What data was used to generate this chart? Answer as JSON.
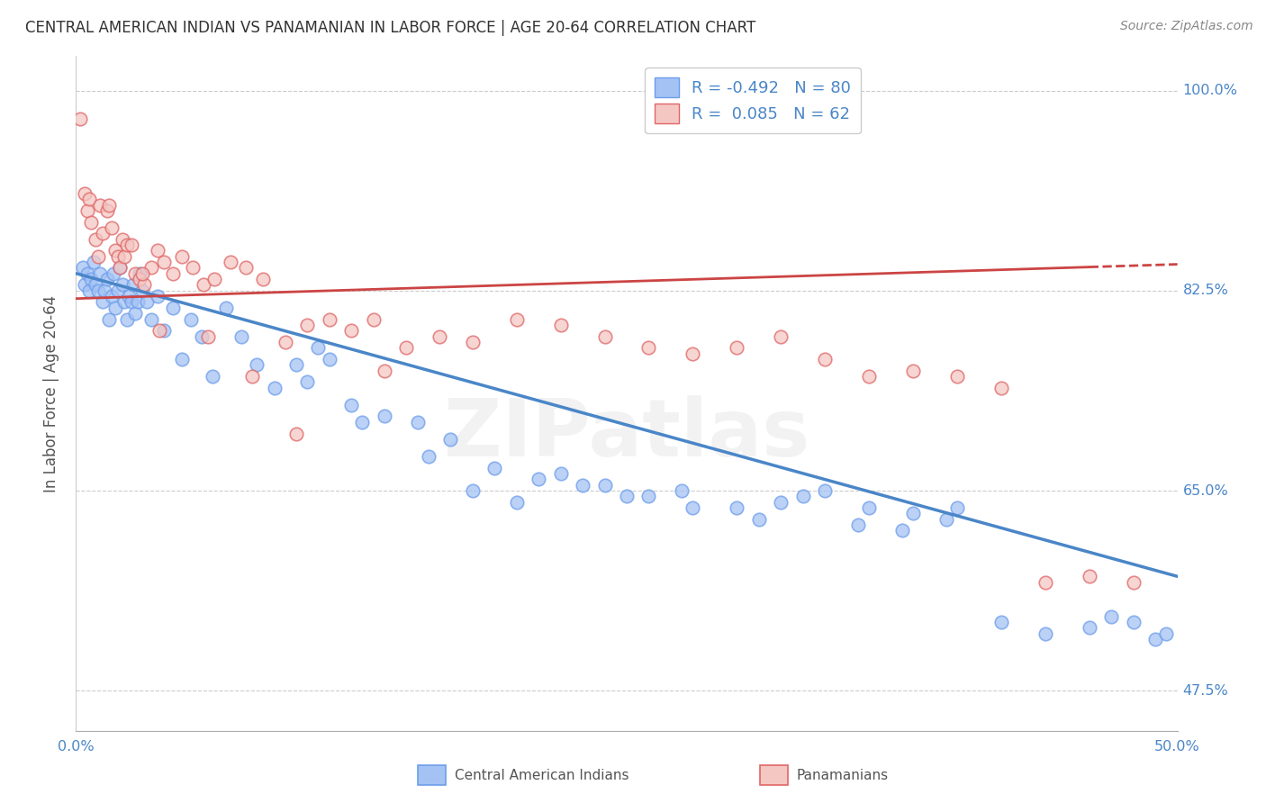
{
  "title": "CENTRAL AMERICAN INDIAN VS PANAMANIAN IN LABOR FORCE | AGE 20-64 CORRELATION CHART",
  "source_text": "Source: ZipAtlas.com",
  "ylabel": "In Labor Force | Age 20-64",
  "xlim": [
    0.0,
    50.0
  ],
  "ylim": [
    44.0,
    103.0
  ],
  "yticks": [
    47.5,
    65.0,
    82.5,
    100.0
  ],
  "ytick_labels": [
    "47.5%",
    "65.0%",
    "82.5%",
    "100.0%"
  ],
  "blue_R": -0.492,
  "blue_N": 80,
  "pink_R": 0.085,
  "pink_N": 62,
  "blue_face_color": "#a4c2f4",
  "pink_face_color": "#f4c7c3",
  "blue_edge_color": "#6d9eeb",
  "pink_edge_color": "#e06666",
  "blue_line_color": "#4a86c8",
  "pink_line_color": "#cc4444",
  "tick_color": "#4a86c8",
  "legend_label_blue": "Central American Indians",
  "legend_label_pink": "Panamanians",
  "watermark": "ZIPatlas",
  "blue_line_x0": 0.0,
  "blue_line_y0": 84.0,
  "blue_line_x1": 50.0,
  "blue_line_y1": 57.5,
  "pink_line_x0": 0.0,
  "pink_line_y0": 81.8,
  "pink_line_x1": 50.0,
  "pink_line_y1": 84.8,
  "pink_solid_end": 46.0,
  "blue_scatter_x": [
    0.3,
    0.4,
    0.5,
    0.6,
    0.7,
    0.8,
    0.9,
    1.0,
    1.1,
    1.2,
    1.3,
    1.4,
    1.5,
    1.6,
    1.7,
    1.8,
    1.9,
    2.0,
    2.1,
    2.2,
    2.3,
    2.4,
    2.5,
    2.6,
    2.7,
    2.8,
    2.9,
    3.0,
    3.2,
    3.4,
    3.7,
    4.0,
    4.4,
    4.8,
    5.2,
    5.7,
    6.2,
    6.8,
    7.5,
    8.2,
    9.0,
    10.0,
    11.0,
    12.5,
    14.0,
    15.5,
    17.0,
    19.0,
    21.0,
    23.0,
    25.0,
    27.5,
    30.0,
    32.0,
    34.0,
    36.0,
    38.0,
    40.0,
    42.0,
    44.0,
    46.0,
    47.0,
    48.0,
    49.0,
    49.5,
    10.5,
    11.5,
    13.0,
    16.0,
    18.0,
    20.0,
    22.0,
    24.0,
    26.0,
    28.0,
    31.0,
    33.0,
    35.5,
    37.5,
    39.5
  ],
  "blue_scatter_y": [
    84.5,
    83.0,
    84.0,
    82.5,
    83.5,
    85.0,
    83.0,
    82.5,
    84.0,
    81.5,
    82.5,
    83.5,
    80.0,
    82.0,
    84.0,
    81.0,
    82.5,
    84.5,
    83.0,
    81.5,
    80.0,
    82.0,
    81.5,
    83.0,
    80.5,
    81.5,
    84.0,
    82.5,
    81.5,
    80.0,
    82.0,
    79.0,
    81.0,
    76.5,
    80.0,
    78.5,
    75.0,
    81.0,
    78.5,
    76.0,
    74.0,
    76.0,
    77.5,
    72.5,
    71.5,
    71.0,
    69.5,
    67.0,
    66.0,
    65.5,
    64.5,
    65.0,
    63.5,
    64.0,
    65.0,
    63.5,
    63.0,
    63.5,
    53.5,
    52.5,
    53.0,
    54.0,
    53.5,
    52.0,
    52.5,
    74.5,
    76.5,
    71.0,
    68.0,
    65.0,
    64.0,
    66.5,
    65.5,
    64.5,
    63.5,
    62.5,
    64.5,
    62.0,
    61.5,
    62.5
  ],
  "pink_scatter_x": [
    0.2,
    0.4,
    0.5,
    0.6,
    0.7,
    0.9,
    1.0,
    1.1,
    1.2,
    1.4,
    1.5,
    1.6,
    1.8,
    1.9,
    2.0,
    2.1,
    2.2,
    2.3,
    2.5,
    2.7,
    2.9,
    3.1,
    3.4,
    3.7,
    4.0,
    4.4,
    4.8,
    5.3,
    5.8,
    6.3,
    7.0,
    7.7,
    8.5,
    9.5,
    10.5,
    11.5,
    12.5,
    13.5,
    15.0,
    16.5,
    18.0,
    20.0,
    22.0,
    24.0,
    26.0,
    28.0,
    30.0,
    32.0,
    34.0,
    36.0,
    38.0,
    40.0,
    42.0,
    44.0,
    46.0,
    48.0,
    3.0,
    3.8,
    6.0,
    8.0,
    10.0,
    14.0
  ],
  "pink_scatter_y": [
    97.5,
    91.0,
    89.5,
    90.5,
    88.5,
    87.0,
    85.5,
    90.0,
    87.5,
    89.5,
    90.0,
    88.0,
    86.0,
    85.5,
    84.5,
    87.0,
    85.5,
    86.5,
    86.5,
    84.0,
    83.5,
    83.0,
    84.5,
    86.0,
    85.0,
    84.0,
    85.5,
    84.5,
    83.0,
    83.5,
    85.0,
    84.5,
    83.5,
    78.0,
    79.5,
    80.0,
    79.0,
    80.0,
    77.5,
    78.5,
    78.0,
    80.0,
    79.5,
    78.5,
    77.5,
    77.0,
    77.5,
    78.5,
    76.5,
    75.0,
    75.5,
    75.0,
    74.0,
    57.0,
    57.5,
    57.0,
    84.0,
    79.0,
    78.5,
    75.0,
    70.0,
    75.5
  ]
}
